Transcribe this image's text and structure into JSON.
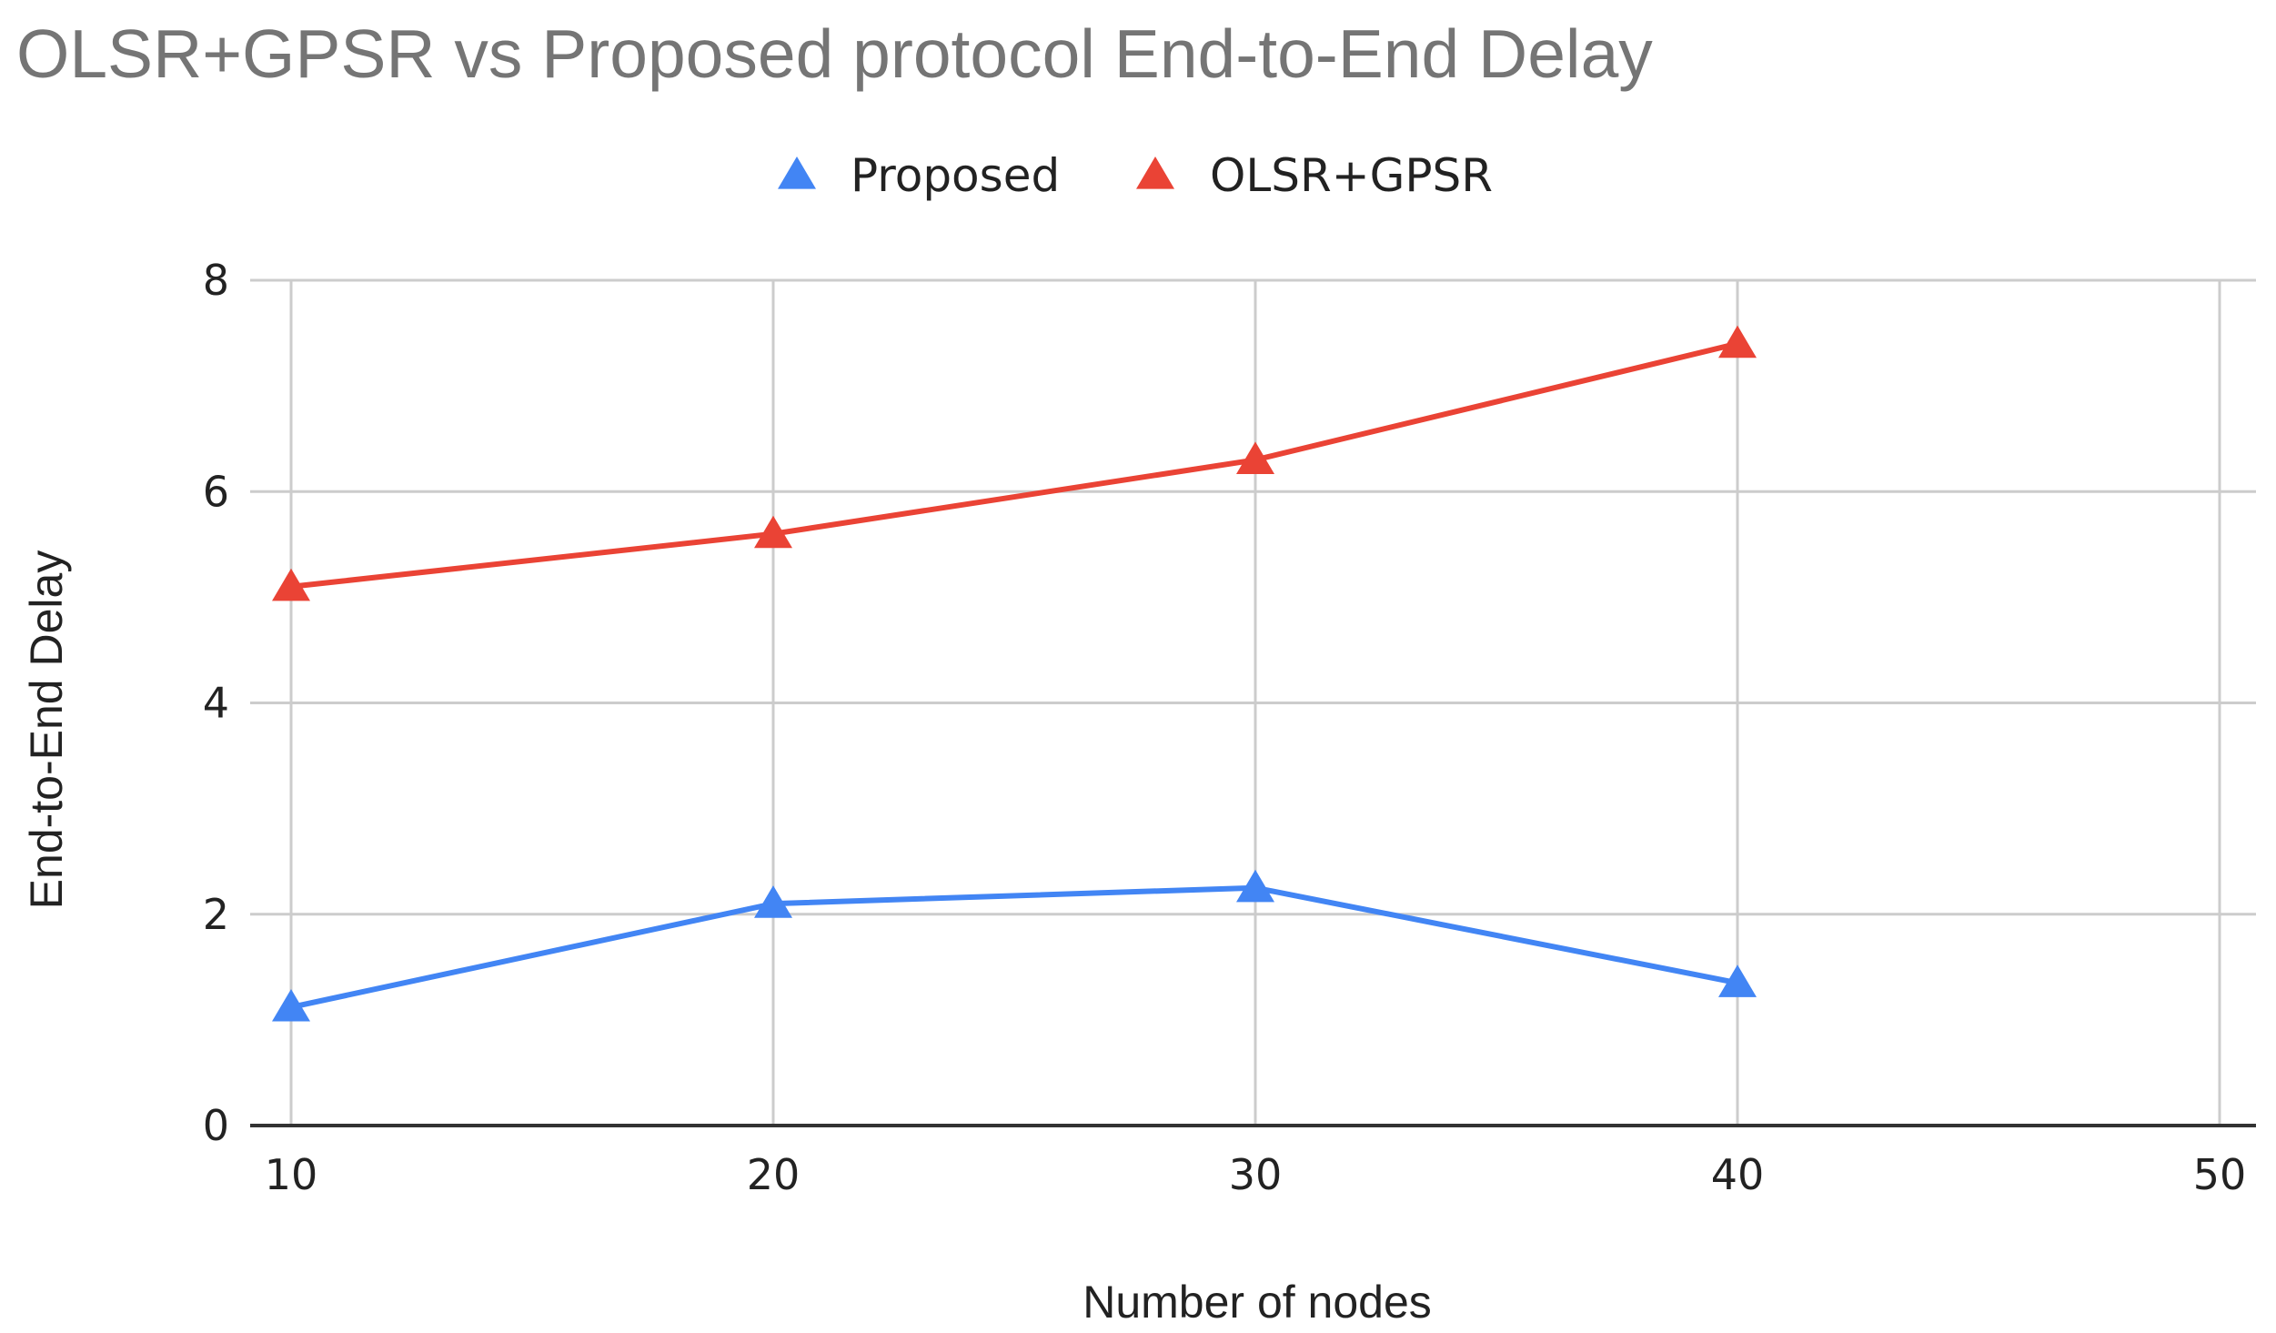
{
  "chart_data": {
    "type": "line",
    "title": "OLSR+GPSR vs Proposed protocol End-to-End Delay",
    "xlabel": "Number of nodes",
    "ylabel": "End-to-End Delay",
    "x_ticks": [
      10,
      20,
      30,
      40,
      50
    ],
    "y_ticks": [
      0,
      2,
      4,
      6,
      8
    ],
    "xlim": [
      10,
      50
    ],
    "ylim": [
      0,
      8
    ],
    "grid": true,
    "legend_position": "top-center",
    "marker": "triangle",
    "series": [
      {
        "name": "Proposed",
        "color": "#4285f4",
        "x": [
          10,
          20,
          30,
          40
        ],
        "values": [
          1.12,
          2.1,
          2.25,
          1.35
        ]
      },
      {
        "name": "OLSR+GPSR",
        "color": "#ea4335",
        "x": [
          10,
          20,
          30,
          40
        ],
        "values": [
          5.1,
          5.6,
          6.3,
          7.4
        ]
      }
    ]
  }
}
